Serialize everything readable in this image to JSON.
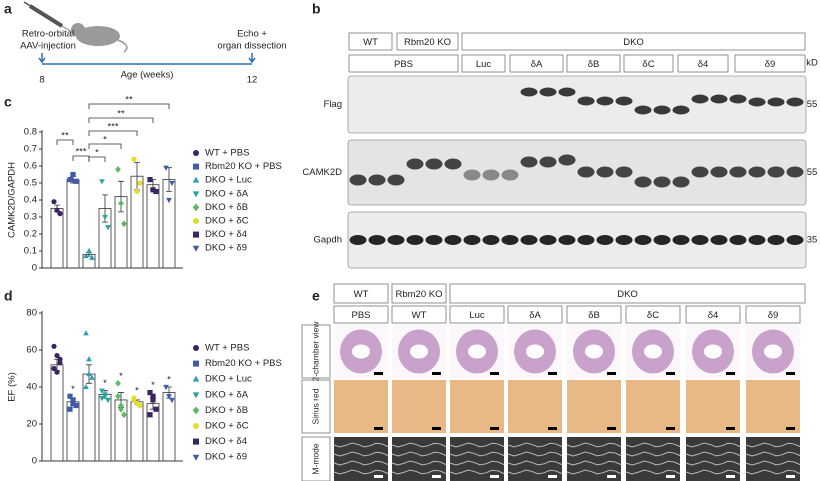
{
  "panel_a": {
    "letter": "a",
    "injection": [
      "Retro-orbital",
      "AAV-injection"
    ],
    "endpoint": [
      "Echo +",
      "organ dissection"
    ],
    "axis_label": "Age (weeks)",
    "start": "8",
    "end": "12"
  },
  "panel_b": {
    "letter": "b",
    "header_top": [
      "WT",
      "Rbm20 KO",
      "DKO"
    ],
    "header_bottom": [
      "PBS",
      "Luc",
      "δA",
      "δB",
      "δC",
      "δ4",
      "δ9"
    ],
    "unit": "kD",
    "blots": [
      {
        "name": "Flag",
        "size": "55"
      },
      {
        "name": "CAMK2D",
        "size": "55"
      },
      {
        "name": "Gapdh",
        "size": "35"
      }
    ]
  },
  "panel_e": {
    "letter": "e",
    "header_top": [
      "WT",
      "Rbm20 KO",
      "DKO"
    ],
    "header_bottom": [
      "PBS",
      "WT",
      "Luc",
      "δA",
      "δB",
      "δC",
      "δ4",
      "δ9"
    ],
    "rows": [
      "2-chamber view",
      "Sirius red",
      "M-mode"
    ]
  },
  "chart_data": [
    {
      "type": "bar",
      "panel": "c",
      "ylabel": "CAMK2D/GAPDH",
      "categories": [
        "WT + PBS",
        "Rbm20 KO + PBS",
        "DKO + Luc",
        "DKO + δA",
        "DKO + δB",
        "DKO + δC",
        "DKO + δ4",
        "DKO + δ9"
      ],
      "colors": [
        "#3b2466",
        "#3f5ba9",
        "#2e9fb0",
        "#26a69a",
        "#5dba63",
        "#e3dc2e",
        "#3b2466",
        "#3f5ba9"
      ],
      "markers": [
        "circle",
        "square",
        "triangle-up",
        "triangle-down",
        "diamond",
        "circle",
        "square",
        "triangle-down"
      ],
      "values": [
        0.35,
        0.52,
        0.08,
        0.35,
        0.42,
        0.54,
        0.49,
        0.52
      ],
      "errors": [
        0.02,
        0.02,
        0.01,
        0.08,
        0.09,
        0.08,
        0.03,
        0.07
      ],
      "points": [
        [
          0.39,
          0.34,
          0.32
        ],
        [
          0.52,
          0.55,
          0.51
        ],
        [
          0.07,
          0.1,
          0.06
        ],
        [
          0.51,
          0.3,
          0.24
        ],
        [
          0.58,
          0.38,
          0.26
        ],
        [
          0.64,
          0.45,
          0.5
        ],
        [
          0.52,
          0.46,
          0.45
        ],
        [
          0.59,
          0.4,
          0.5
        ]
      ],
      "brackets": [
        {
          "from": 0,
          "to": 1,
          "label": "**"
        },
        {
          "from": 1,
          "to": 2,
          "label": "***"
        },
        {
          "from": 2,
          "to": 3,
          "label": "*"
        },
        {
          "from": 2,
          "to": 4,
          "label": "*"
        },
        {
          "from": 2,
          "to": 5,
          "label": "***"
        },
        {
          "from": 2,
          "to": 6,
          "label": "**"
        },
        {
          "from": 2,
          "to": 7,
          "label": "**"
        }
      ],
      "ylim": [
        0,
        0.8
      ],
      "yticks": [
        0,
        0.1,
        0.2,
        0.3,
        0.4,
        0.5,
        0.6,
        0.7,
        0.8
      ]
    },
    {
      "type": "bar",
      "panel": "d",
      "ylabel": "EF (%)",
      "categories": [
        "WT + PBS",
        "Rbm20 KO + PBS",
        "DKO + Luc",
        "DKO + δA",
        "DKO + δB",
        "DKO + δC",
        "DKO + δ4",
        "DKO + δ9"
      ],
      "colors": [
        "#3b2466",
        "#3f5ba9",
        "#2e9fb0",
        "#26a69a",
        "#5dba63",
        "#e3dc2e",
        "#3b2466",
        "#3f5ba9"
      ],
      "markers": [
        "circle",
        "square",
        "triangle-up",
        "triangle-down",
        "diamond",
        "circle",
        "square",
        "triangle-down"
      ],
      "values": [
        52,
        32,
        47,
        36,
        33,
        32,
        31,
        37
      ],
      "errors": [
        3,
        2,
        5,
        2,
        4,
        1,
        3,
        3
      ],
      "points": [
        [
          62,
          57,
          53,
          50,
          48,
          55
        ],
        [
          35,
          31,
          30,
          28,
          33
        ],
        [
          69,
          55,
          45,
          40,
          47
        ],
        [
          38,
          35,
          33,
          34,
          36
        ],
        [
          42,
          30,
          25,
          35,
          28
        ],
        [
          34,
          31,
          30,
          33
        ],
        [
          37,
          33,
          28,
          25,
          35
        ],
        [
          40,
          35,
          33
        ]
      ],
      "stars": [
        null,
        "*",
        null,
        "*",
        "*",
        "*",
        "*",
        "*"
      ],
      "ylim": [
        0,
        80
      ],
      "yticks": [
        0,
        20,
        40,
        60,
        80
      ]
    }
  ]
}
